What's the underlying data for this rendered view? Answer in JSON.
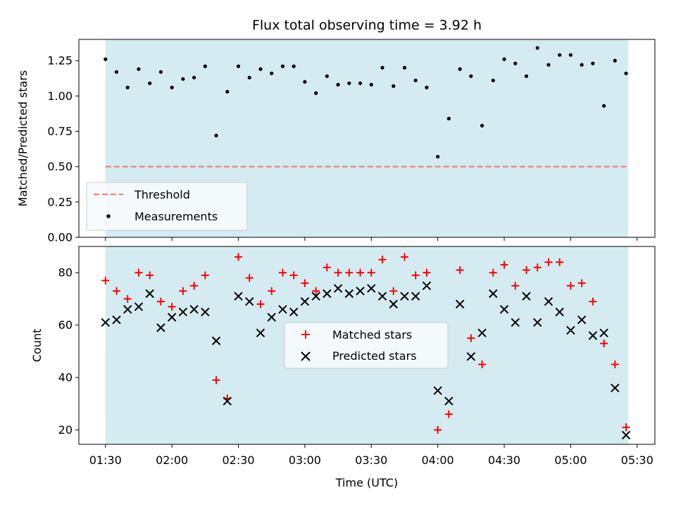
{
  "chart_data": {
    "type": "scatter",
    "title": "Flux total observing time = 3.92 h",
    "xlabel": "Time (UTC)",
    "x_tick_labels": [
      "01:30",
      "02:00",
      "02:30",
      "03:00",
      "03:30",
      "04:00",
      "04:30",
      "05:00",
      "05:30"
    ],
    "x_range": [
      "01:18",
      "05:38"
    ],
    "shaded_interval": [
      "01:30",
      "05:26"
    ],
    "colors": {
      "shade": "#d4ebf1",
      "threshold": "#f08080",
      "measurements": "#000000",
      "matched": "#ff0000",
      "predicted": "#000000"
    },
    "panels": [
      {
        "ylabel": "Matched/Predicted stars",
        "ylim": [
          0,
          1.4
        ],
        "y_ticks": [
          "0.00",
          "0.25",
          "0.50",
          "0.75",
          "1.00",
          "1.25"
        ],
        "legend_placement": "lower-left",
        "threshold": {
          "name": "Threshold",
          "value": 0.5
        },
        "series": [
          {
            "name": "Measurements",
            "marker": "dot",
            "points": [
              [
                "01:30",
                1.26
              ],
              [
                "01:35",
                1.17
              ],
              [
                "01:40",
                1.06
              ],
              [
                "01:45",
                1.19
              ],
              [
                "01:50",
                1.09
              ],
              [
                "01:55",
                1.17
              ],
              [
                "02:00",
                1.06
              ],
              [
                "02:05",
                1.12
              ],
              [
                "02:10",
                1.13
              ],
              [
                "02:15",
                1.21
              ],
              [
                "02:20",
                0.72
              ],
              [
                "02:25",
                1.03
              ],
              [
                "02:30",
                1.21
              ],
              [
                "02:35",
                1.13
              ],
              [
                "02:40",
                1.19
              ],
              [
                "02:45",
                1.16
              ],
              [
                "02:50",
                1.21
              ],
              [
                "02:55",
                1.21
              ],
              [
                "03:00",
                1.1
              ],
              [
                "03:05",
                1.02
              ],
              [
                "03:10",
                1.14
              ],
              [
                "03:15",
                1.08
              ],
              [
                "03:20",
                1.09
              ],
              [
                "03:25",
                1.09
              ],
              [
                "03:30",
                1.08
              ],
              [
                "03:35",
                1.2
              ],
              [
                "03:40",
                1.07
              ],
              [
                "03:45",
                1.2
              ],
              [
                "03:50",
                1.11
              ],
              [
                "03:55",
                1.06
              ],
              [
                "04:00",
                0.57
              ],
              [
                "04:05",
                0.84
              ],
              [
                "04:10",
                1.19
              ],
              [
                "04:15",
                1.14
              ],
              [
                "04:20",
                0.79
              ],
              [
                "04:25",
                1.11
              ],
              [
                "04:30",
                1.26
              ],
              [
                "04:35",
                1.23
              ],
              [
                "04:40",
                1.14
              ],
              [
                "04:45",
                1.34
              ],
              [
                "04:50",
                1.22
              ],
              [
                "04:55",
                1.29
              ],
              [
                "05:00",
                1.29
              ],
              [
                "05:05",
                1.22
              ],
              [
                "05:10",
                1.23
              ],
              [
                "05:15",
                0.93
              ],
              [
                "05:20",
                1.25
              ],
              [
                "05:25",
                1.16
              ]
            ]
          }
        ]
      },
      {
        "ylabel": "Count",
        "ylim": [
          14.5,
          90
        ],
        "y_ticks": [
          "20",
          "40",
          "60",
          "80"
        ],
        "legend_placement": "center",
        "series": [
          {
            "name": "Matched stars",
            "marker": "plus",
            "points": [
              [
                "01:30",
                77
              ],
              [
                "01:35",
                73
              ],
              [
                "01:40",
                70
              ],
              [
                "01:45",
                80
              ],
              [
                "01:50",
                79
              ],
              [
                "01:55",
                69
              ],
              [
                "02:00",
                67
              ],
              [
                "02:05",
                73
              ],
              [
                "02:10",
                75
              ],
              [
                "02:15",
                79
              ],
              [
                "02:20",
                39
              ],
              [
                "02:25",
                32
              ],
              [
                "02:30",
                86
              ],
              [
                "02:35",
                78
              ],
              [
                "02:40",
                68
              ],
              [
                "02:45",
                73
              ],
              [
                "02:50",
                80
              ],
              [
                "02:55",
                79
              ],
              [
                "03:00",
                76
              ],
              [
                "03:05",
                73
              ],
              [
                "03:10",
                82
              ],
              [
                "03:15",
                80
              ],
              [
                "03:20",
                80
              ],
              [
                "03:25",
                80
              ],
              [
                "03:30",
                80
              ],
              [
                "03:35",
                85
              ],
              [
                "03:40",
                73
              ],
              [
                "03:45",
                86
              ],
              [
                "03:50",
                79
              ],
              [
                "03:55",
                80
              ],
              [
                "04:00",
                20
              ],
              [
                "04:05",
                26
              ],
              [
                "04:10",
                81
              ],
              [
                "04:15",
                55
              ],
              [
                "04:20",
                45
              ],
              [
                "04:25",
                80
              ],
              [
                "04:30",
                83
              ],
              [
                "04:35",
                75
              ],
              [
                "04:40",
                81
              ],
              [
                "04:45",
                82
              ],
              [
                "04:50",
                84
              ],
              [
                "04:55",
                84
              ],
              [
                "05:00",
                75
              ],
              [
                "05:05",
                76
              ],
              [
                "05:10",
                69
              ],
              [
                "05:15",
                53
              ],
              [
                "05:20",
                45
              ],
              [
                "05:25",
                21
              ]
            ]
          },
          {
            "name": "Predicted stars",
            "marker": "x",
            "points": [
              [
                "01:30",
                61
              ],
              [
                "01:35",
                62
              ],
              [
                "01:40",
                66
              ],
              [
                "01:45",
                67
              ],
              [
                "01:50",
                72
              ],
              [
                "01:55",
                59
              ],
              [
                "02:00",
                63
              ],
              [
                "02:05",
                65
              ],
              [
                "02:10",
                66
              ],
              [
                "02:15",
                65
              ],
              [
                "02:20",
                54
              ],
              [
                "02:25",
                31
              ],
              [
                "02:30",
                71
              ],
              [
                "02:35",
                69
              ],
              [
                "02:40",
                57
              ],
              [
                "02:45",
                63
              ],
              [
                "02:50",
                66
              ],
              [
                "02:55",
                65
              ],
              [
                "03:00",
                69
              ],
              [
                "03:05",
                71
              ],
              [
                "03:10",
                72
              ],
              [
                "03:15",
                74
              ],
              [
                "03:20",
                72
              ],
              [
                "03:25",
                73
              ],
              [
                "03:30",
                74
              ],
              [
                "03:35",
                71
              ],
              [
                "03:40",
                68
              ],
              [
                "03:45",
                71
              ],
              [
                "03:50",
                71
              ],
              [
                "03:55",
                75
              ],
              [
                "04:00",
                35
              ],
              [
                "04:05",
                31
              ],
              [
                "04:10",
                68
              ],
              [
                "04:15",
                48
              ],
              [
                "04:20",
                57
              ],
              [
                "04:25",
                72
              ],
              [
                "04:30",
                66
              ],
              [
                "04:35",
                61
              ],
              [
                "04:40",
                71
              ],
              [
                "04:45",
                61
              ],
              [
                "04:50",
                69
              ],
              [
                "04:55",
                65
              ],
              [
                "05:00",
                58
              ],
              [
                "05:05",
                62
              ],
              [
                "05:10",
                56
              ],
              [
                "05:15",
                57
              ],
              [
                "05:20",
                36
              ],
              [
                "05:25",
                18
              ]
            ]
          }
        ]
      }
    ]
  }
}
